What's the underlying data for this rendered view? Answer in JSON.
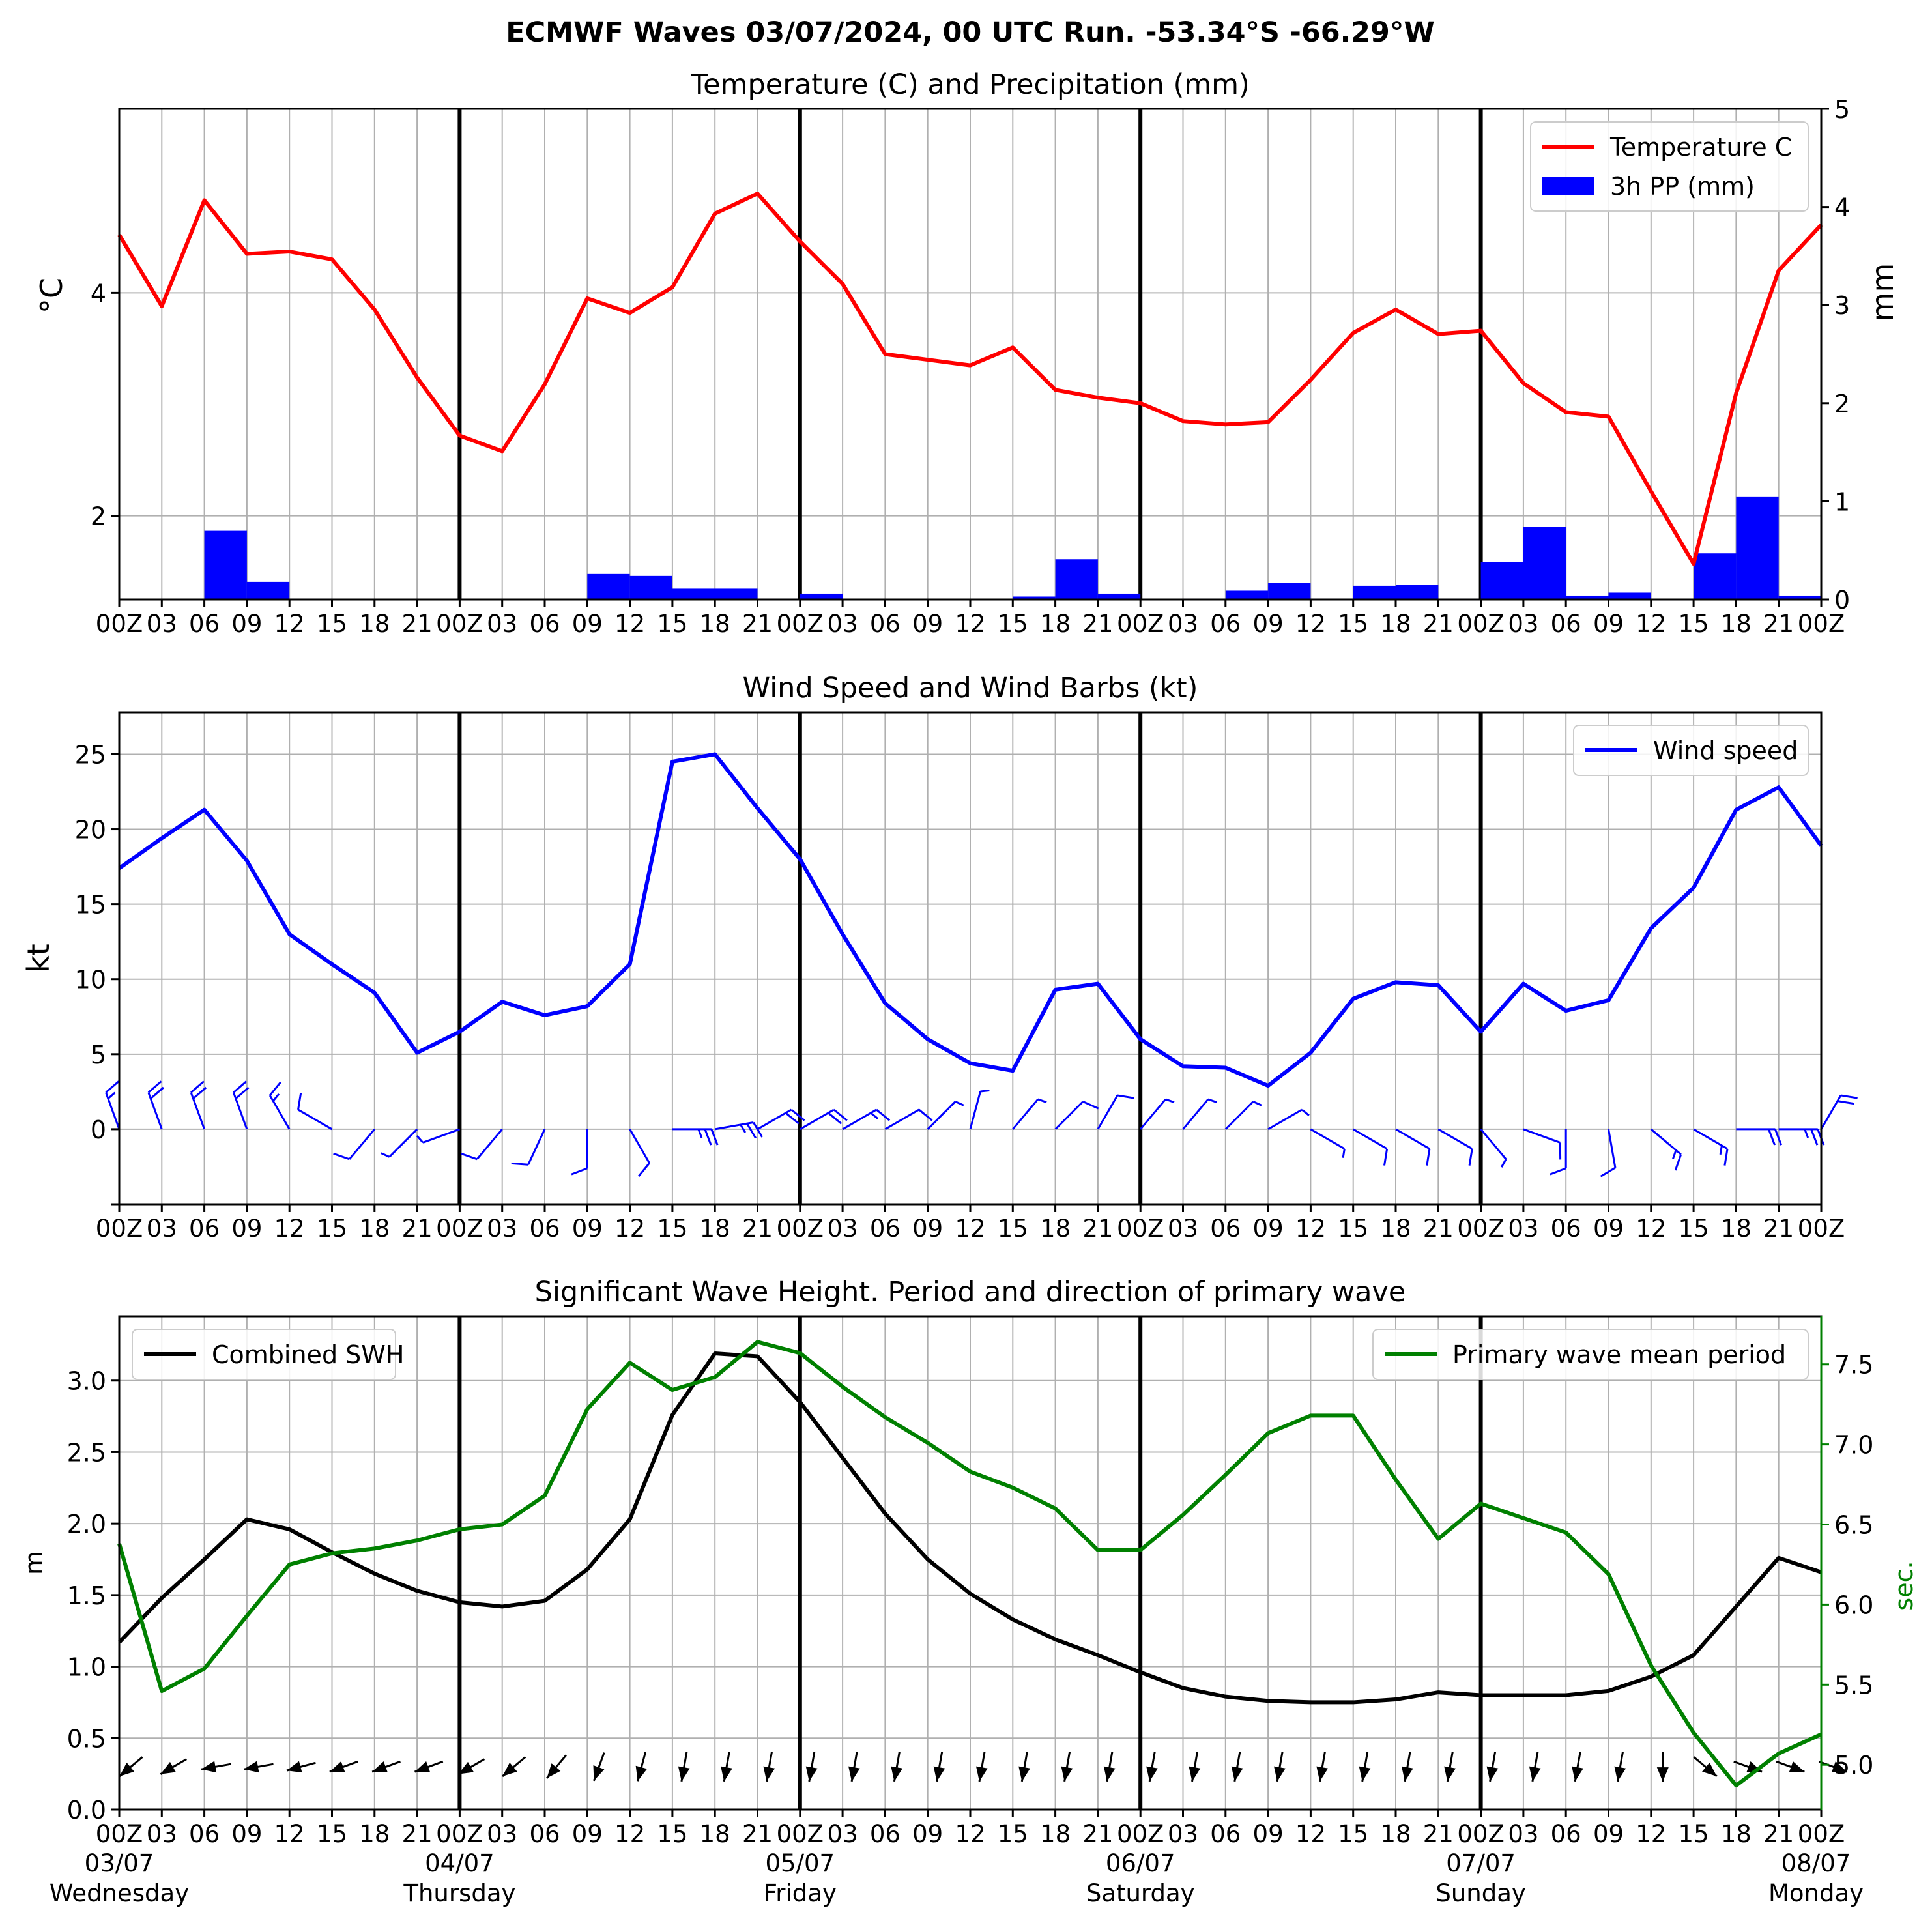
{
  "chart_data": {
    "suptitle": "ECMWF Waves 03/07/2024, 00 UTC Run. -53.34°S -66.29°W",
    "time_steps": 41,
    "hour_labels": [
      "00Z",
      "03",
      "06",
      "09",
      "12",
      "15",
      "18",
      "21",
      "00Z",
      "03",
      "06",
      "09",
      "12",
      "15",
      "18",
      "21",
      "00Z",
      "03",
      "06",
      "09",
      "12",
      "15",
      "18",
      "21",
      "00Z",
      "03",
      "06",
      "09",
      "12",
      "15",
      "18",
      "21",
      "00Z",
      "03",
      "06",
      "09",
      "12",
      "15",
      "18",
      "21",
      "00Z"
    ],
    "day_markers": [
      {
        "index": 0,
        "date": "03/07",
        "day": "Wednesday"
      },
      {
        "index": 8,
        "date": "04/07",
        "day": "Thursday"
      },
      {
        "index": 16,
        "date": "05/07",
        "day": "Friday"
      },
      {
        "index": 24,
        "date": "06/07",
        "day": "Saturday"
      },
      {
        "index": 32,
        "date": "07/07",
        "day": "Sunday"
      },
      {
        "index": 40,
        "date": "08/07",
        "day": "Monday"
      }
    ],
    "panels": [
      {
        "type": "line+bar",
        "title": "Temperature (C) and Precipitation (mm)",
        "ylabel": "$^\\circ$C",
        "ylabel_right": "mm",
        "ylim": [
          1.25,
          5.65
        ],
        "yticks": [
          2,
          4
        ],
        "ylim_right": [
          0,
          5
        ],
        "yticks_right": [
          0,
          1,
          2,
          3,
          4,
          5
        ],
        "legend_position": "top-right",
        "series": [
          {
            "name": "Temperature C",
            "color": "#ff0000",
            "values": [
              4.52,
              3.88,
              4.83,
              4.35,
              4.37,
              4.3,
              3.85,
              3.24,
              2.72,
              2.58,
              3.18,
              3.95,
              3.82,
              4.05,
              4.71,
              4.89,
              4.46,
              4.08,
              3.45,
              3.4,
              3.35,
              3.51,
              3.13,
              3.06,
              3.01,
              2.85,
              2.82,
              2.84,
              3.22,
              3.64,
              3.85,
              3.63,
              3.66,
              3.19,
              2.93,
              2.89,
              2.22,
              1.57,
              3.1,
              4.2,
              4.61
            ]
          },
          {
            "name": "3h PP (mm)",
            "color": "#0000ff",
            "axis": "right",
            "values": [
              0,
              0,
              0.7,
              0.18,
              0.01,
              0,
              0,
              0,
              0,
              0,
              0,
              0.26,
              0.24,
              0.11,
              0.11,
              0.01,
              0.06,
              0,
              0,
              0,
              0,
              0.03,
              0.41,
              0.06,
              0,
              0.01,
              0.09,
              0.17,
              0.01,
              0.14,
              0.15,
              0.01,
              0.38,
              0.74,
              0.04,
              0.07,
              0,
              0.47,
              1.05,
              0.04
            ]
          }
        ]
      },
      {
        "type": "line",
        "title": "Wind Speed and Wind Barbs (kt)",
        "ylabel": "kt",
        "ylim": [
          -5,
          27.8
        ],
        "yticks": [
          0,
          5,
          10,
          15,
          20,
          25
        ],
        "legend_position": "top-right",
        "series": [
          {
            "name": "Wind speed",
            "color": "#0000ff",
            "values": [
              17.4,
              19.4,
              21.3,
              17.9,
              13.0,
              11.0,
              9.1,
              5.1,
              6.5,
              8.5,
              7.6,
              8.2,
              11.0,
              24.5,
              25.0,
              21.4,
              18.0,
              13.0,
              8.4,
              6.0,
              4.4,
              3.9,
              9.3,
              9.7,
              6.0,
              4.2,
              4.1,
              2.9,
              5.1,
              8.7,
              9.8,
              9.6,
              6.5,
              9.7,
              7.9,
              8.6,
              13.4,
              16.1,
              21.3,
              22.8,
              18.9
            ]
          }
        ],
        "barb_directions_deg": [
          340,
          340,
          340,
          340,
          330,
          300,
          220,
          225,
          250,
          220,
          205,
          180,
          150,
          90,
          80,
          60,
          60,
          60,
          60,
          45,
          15,
          40,
          45,
          30,
          40,
          40,
          45,
          60,
          120,
          120,
          120,
          120,
          140,
          110,
          180,
          170,
          130,
          120,
          90,
          90,
          30
        ]
      },
      {
        "type": "line",
        "title": "Significant Wave Height. Period and direction of primary wave",
        "ylabel": "m",
        "ylabel_right": "sec.",
        "ylim": [
          0,
          3.45
        ],
        "yticks": [
          0.0,
          0.5,
          1.0,
          1.5,
          2.0,
          2.5,
          3.0
        ],
        "ylim_right": [
          4.72,
          7.8
        ],
        "yticks_right": [
          5.0,
          5.5,
          6.0,
          6.5,
          7.0,
          7.5
        ],
        "series": [
          {
            "name": "Combined SWH",
            "color": "#000000",
            "legend_position": "top-left",
            "values": [
              1.17,
              1.48,
              1.75,
              2.03,
              1.96,
              1.8,
              1.65,
              1.53,
              1.45,
              1.42,
              1.46,
              1.68,
              2.03,
              2.76,
              3.19,
              3.17,
              2.85,
              2.46,
              2.07,
              1.75,
              1.51,
              1.33,
              1.19,
              1.08,
              0.96,
              0.85,
              0.79,
              0.76,
              0.75,
              0.75,
              0.77,
              0.82,
              0.8,
              0.8,
              0.8,
              0.83,
              0.93,
              1.08,
              1.42,
              1.76,
              1.66
            ]
          },
          {
            "name": "Primary wave mean period",
            "color": "#008000",
            "axis": "right",
            "legend_position": "top-right",
            "values": [
              6.38,
              5.46,
              5.6,
              5.93,
              6.25,
              6.32,
              6.35,
              6.4,
              6.47,
              6.5,
              6.68,
              7.22,
              7.51,
              7.34,
              7.42,
              7.64,
              7.57,
              7.36,
              7.17,
              7.01,
              6.83,
              6.73,
              6.6,
              6.34,
              6.34,
              6.56,
              6.81,
              7.07,
              7.18,
              7.18,
              6.78,
              6.41,
              6.63,
              6.54,
              6.45,
              6.19,
              5.62,
              5.2,
              4.87,
              5.07,
              5.19
            ]
          }
        ],
        "wave_arrow_directions_deg": [
          230,
          240,
          260,
          260,
          255,
          250,
          250,
          250,
          240,
          230,
          220,
          200,
          195,
          190,
          190,
          190,
          190,
          190,
          190,
          190,
          190,
          190,
          190,
          190,
          190,
          190,
          190,
          190,
          190,
          190,
          190,
          190,
          190,
          190,
          190,
          190,
          180,
          130,
          110,
          110,
          110
        ]
      }
    ]
  }
}
